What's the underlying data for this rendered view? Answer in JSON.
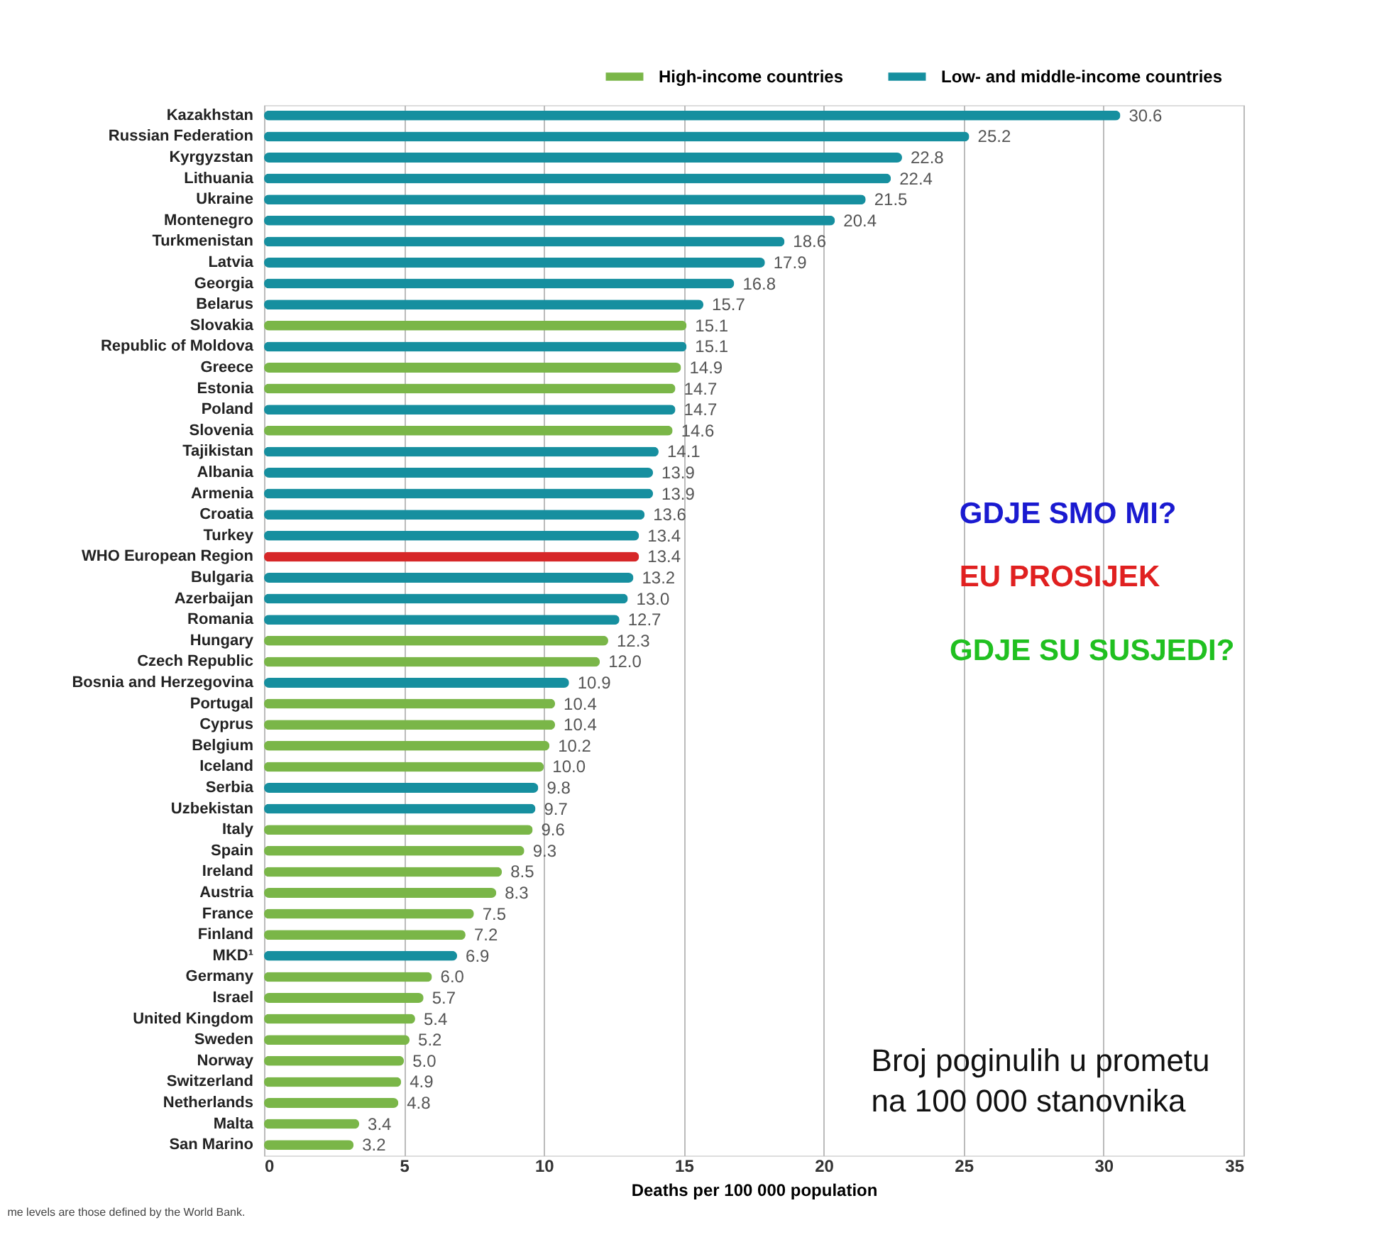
{
  "chart_data": {
    "type": "bar",
    "orientation": "horizontal",
    "xlabel": "Deaths per 100 000 population",
    "categories": [
      "Kazakhstan",
      "Russian Federation",
      "Kyrgyzstan",
      "Lithuania",
      "Ukraine",
      "Montenegro",
      "Turkmenistan",
      "Latvia",
      "Georgia",
      "Belarus",
      "Slovakia",
      "Republic of Moldova",
      "Greece",
      "Estonia",
      "Poland",
      "Slovenia",
      "Tajikistan",
      "Albania",
      "Armenia",
      "Croatia",
      "Turkey",
      "WHO European Region",
      "Bulgaria",
      "Azerbaijan",
      "Romania",
      "Hungary",
      "Czech Republic",
      "Bosnia and Herzegovina",
      "Portugal",
      "Cyprus",
      "Belgium",
      "Iceland",
      "Serbia",
      "Uzbekistan",
      "Italy",
      "Spain",
      "Ireland",
      "Austria",
      "France",
      "Finland",
      "MKD¹",
      "Germany",
      "Israel",
      "United Kingdom",
      "Sweden",
      "Norway",
      "Switzerland",
      "Netherlands",
      "Malta",
      "San Marino"
    ],
    "series": [
      {
        "name": "High-income countries",
        "color": "#7ab648",
        "values": [
          null,
          null,
          null,
          null,
          null,
          null,
          null,
          null,
          null,
          null,
          15.1,
          null,
          14.9,
          14.7,
          null,
          14.6,
          null,
          null,
          null,
          null,
          null,
          null,
          null,
          null,
          null,
          12.3,
          12.0,
          null,
          10.4,
          10.4,
          10.2,
          10.0,
          null,
          null,
          9.6,
          9.3,
          8.5,
          8.3,
          7.5,
          7.2,
          null,
          6.0,
          5.7,
          5.4,
          5.2,
          5.0,
          4.9,
          4.8,
          3.4,
          3.2
        ],
        "value_labels": [
          null,
          null,
          null,
          null,
          null,
          null,
          null,
          null,
          null,
          null,
          "15.1",
          null,
          "14.9",
          "14.7",
          null,
          "14.6",
          null,
          null,
          null,
          null,
          null,
          null,
          null,
          null,
          null,
          "12.3",
          "12.0",
          null,
          "10.4",
          "10.4",
          "10.2",
          "10.0",
          null,
          null,
          "9.6",
          "9.3",
          "8.5",
          "8.3",
          "7.5",
          "7.2",
          null,
          "6.0",
          "5.7",
          "5.4",
          "5.2",
          "5.0",
          "4.9",
          "4.8",
          "3.4",
          "3.2"
        ]
      },
      {
        "name": "Low- and middle-income countries",
        "color": "#168f9f",
        "values": [
          30.6,
          25.2,
          22.8,
          22.4,
          21.5,
          20.4,
          18.6,
          17.9,
          16.8,
          15.7,
          null,
          15.1,
          null,
          null,
          14.7,
          null,
          14.1,
          13.9,
          13.9,
          13.6,
          13.4,
          null,
          13.2,
          13.0,
          12.7,
          null,
          null,
          10.9,
          null,
          null,
          null,
          null,
          9.8,
          9.7,
          null,
          null,
          null,
          null,
          null,
          null,
          6.9,
          null,
          null,
          null,
          null,
          null,
          null,
          null,
          null,
          null
        ],
        "value_labels": [
          "30.6",
          "25.2",
          "22.8",
          "22.4",
          "21.5",
          "20.4",
          "18.6",
          "17.9",
          "16.8",
          "15.7",
          null,
          "15.1",
          null,
          null,
          "14.7",
          null,
          "14.1",
          "13.9",
          "13.9",
          "13.6",
          "13.4",
          null,
          "13.2",
          "13.0",
          "12.7",
          null,
          null,
          "10.9",
          null,
          null,
          null,
          null,
          "9.8",
          "9.7",
          null,
          null,
          null,
          null,
          null,
          null,
          "6.9",
          null,
          null,
          null,
          null,
          null,
          null,
          null,
          null,
          null
        ]
      },
      {
        "color": "#d62728",
        "values": [
          null,
          null,
          null,
          null,
          null,
          null,
          null,
          null,
          null,
          null,
          null,
          null,
          null,
          null,
          null,
          null,
          null,
          null,
          null,
          null,
          null,
          13.4,
          null,
          null,
          null,
          null,
          null,
          null,
          null,
          null,
          null,
          null,
          null,
          null,
          null,
          null,
          null,
          null,
          null,
          null,
          null,
          null,
          null,
          null,
          null,
          null,
          null,
          null,
          null,
          null
        ],
        "value_labels": [
          null,
          null,
          null,
          null,
          null,
          null,
          null,
          null,
          null,
          null,
          null,
          null,
          null,
          null,
          null,
          null,
          null,
          null,
          null,
          null,
          null,
          "13.4",
          null,
          null,
          null,
          null,
          null,
          null,
          null,
          null,
          null,
          null,
          null,
          null,
          null,
          null,
          null,
          null,
          null,
          null,
          null,
          null,
          null,
          null,
          null,
          null,
          null,
          null,
          null,
          null
        ]
      }
    ],
    "xlim": [
      0,
      35
    ],
    "xticks": [
      0,
      5,
      10,
      15,
      20,
      25,
      30,
      35
    ],
    "grid": "x",
    "legend": "top right",
    "annotations": [
      "GDJE SMO MI?",
      "EU PROSIJEK",
      "GDJE SU SUSJEDI?",
      "Broj poginulih u prometu\nna 100 000 stanovnika",
      "me levels are those defined by the World Bank."
    ]
  }
}
